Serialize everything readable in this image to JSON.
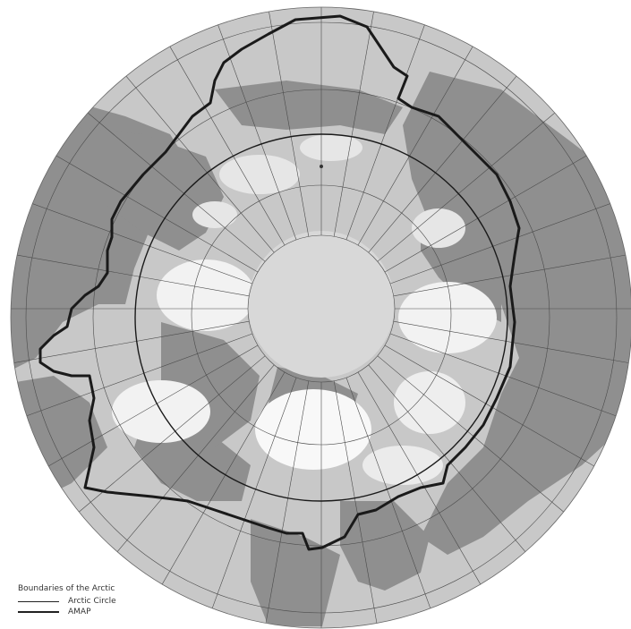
{
  "legend": {
    "title": "Boundaries of the Arctic",
    "items": [
      {
        "label": "Arctic Circle",
        "style": "thin"
      },
      {
        "label": "AMAP",
        "style": "thick"
      }
    ]
  },
  "colors": {
    "ocean": "#c8c8c8",
    "land": "#8f8f8f",
    "ice_shelf": "#e6e6e6",
    "snow": "#f8f8f8",
    "pole": "#d8d8d8",
    "grid": "#4a4a4a",
    "boundary": "#1a1a1a"
  }
}
